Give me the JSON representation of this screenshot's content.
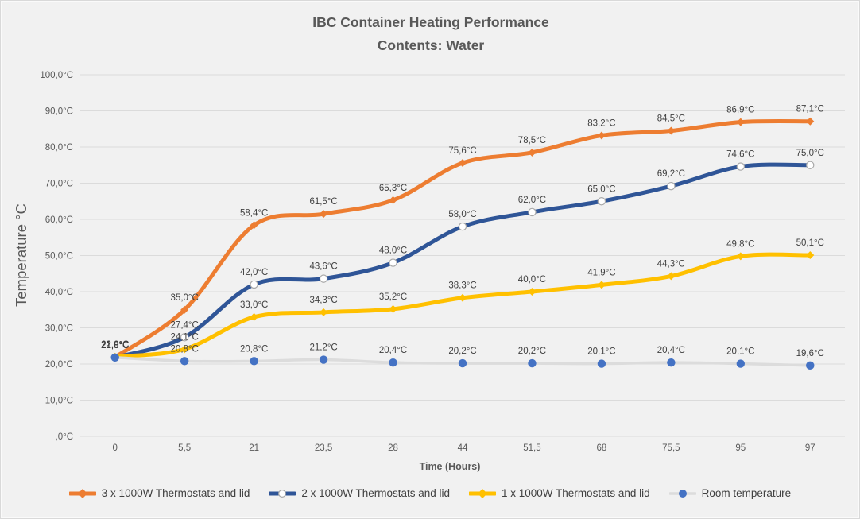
{
  "chart_data": {
    "type": "line",
    "title": "IBC Container Heating Performance",
    "subtitle": "Contents: Water",
    "xlabel": "Time (Hours)",
    "ylabel": "Temperature °C",
    "x_categories": [
      "0",
      "5,5",
      "21",
      "23,5",
      "28",
      "44",
      "51,5",
      "68",
      "75,5",
      "95",
      "97"
    ],
    "x_values_hours": [
      0,
      5.5,
      21,
      23.5,
      28,
      44,
      51.5,
      68,
      75.5,
      95,
      97
    ],
    "ylim": [
      0,
      100
    ],
    "y_tick_step": 10,
    "y_tick_labels": [
      ",0°C",
      "10,0°C",
      "20,0°C",
      "30,0°C",
      "40,0°C",
      "50,0°C",
      "60,0°C",
      "70,0°C",
      "80,0°C",
      "90,0°C",
      "100,0°C"
    ],
    "grid": true,
    "legend_position": "bottom",
    "background_color": "#f1f1f1",
    "grid_color": "#dbdbdb",
    "axis_text_color": "#595959",
    "data_label_color": "#404040",
    "note": "All four series start overlapped near 22°C at hour 0, labels overprint each other",
    "series": [
      {
        "name": "3 x 1000W Thermostats and lid",
        "color": "#ED7D31",
        "marker": "diamond",
        "line_width": 5,
        "values": [
          21.9,
          35.0,
          58.4,
          61.5,
          65.3,
          75.6,
          78.5,
          83.2,
          84.5,
          86.9,
          87.1
        ],
        "labels": [
          "21,9°C",
          "35,0°C",
          "58,4°C",
          "61,5°C",
          "65,3°C",
          "75,6°C",
          "78,5°C",
          "83,2°C",
          "84,5°C",
          "86,9°C",
          "87,1°C"
        ]
      },
      {
        "name": "2 x 1000W Thermostats and lid",
        "color": "#2F5597",
        "marker": "circle-white",
        "line_width": 5,
        "values": [
          21.8,
          27.4,
          42.0,
          43.6,
          48.0,
          58.0,
          62.0,
          65.0,
          69.2,
          74.6,
          75.0
        ],
        "labels": [
          "21,8°C",
          "27,4°C",
          "42,0°C",
          "43,6°C",
          "48,0°C",
          "58,0°C",
          "62,0°C",
          "65,0°C",
          "69,2°C",
          "74,6°C",
          "75,0°C"
        ]
      },
      {
        "name": "1 x 1000W Thermostats and lid",
        "color": "#FFC000",
        "marker": "diamond",
        "line_width": 5,
        "values": [
          22.0,
          24.1,
          33.0,
          34.3,
          35.2,
          38.3,
          40.0,
          41.9,
          44.3,
          49.8,
          50.1
        ],
        "labels": [
          "22,0°C",
          "24,1°C",
          "33,0°C",
          "34,3°C",
          "35,2°C",
          "38,3°C",
          "40,0°C",
          "41,9°C",
          "44,3°C",
          "49,8°C",
          "50,1°C"
        ]
      },
      {
        "name": "Room temperature",
        "color": "#DCDCDC",
        "marker": "dot",
        "marker_color": "#4472C4",
        "line_width": 3.5,
        "values": [
          21.8,
          20.8,
          20.8,
          21.2,
          20.4,
          20.2,
          20.2,
          20.1,
          20.4,
          20.1,
          19.6
        ],
        "labels": [
          "21,8°C",
          "20,8°C",
          "20,8°C",
          "21,2°C",
          "20,4°C",
          "20,2°C",
          "20,2°C",
          "20,1°C",
          "20,4°C",
          "20,1°C",
          "19,6°C"
        ]
      }
    ]
  }
}
